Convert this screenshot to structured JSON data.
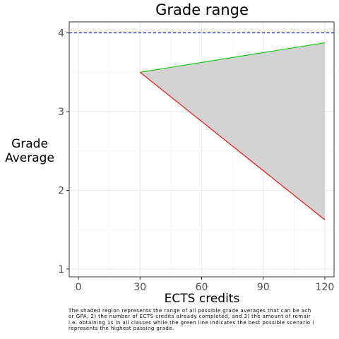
{
  "chart_data": {
    "type": "area",
    "title": "Grade range",
    "xlabel": "ECTS credits",
    "ylabel": [
      "Grade",
      "Average"
    ],
    "xlim": [
      -4.5,
      124.5
    ],
    "ylim": [
      0.9,
      4.14
    ],
    "x_ticks": [
      0,
      30,
      60,
      90,
      120
    ],
    "y_ticks": [
      1,
      2,
      3,
      4
    ],
    "grid": true,
    "legend": "none",
    "reference_line": {
      "y": 4,
      "color": "#0000ff",
      "style": "dashed"
    },
    "region": {
      "x": [
        30,
        120
      ],
      "upper": [
        3.5,
        3.875
      ],
      "lower": [
        3.5,
        1.625
      ],
      "fill": "#d3d3d3"
    },
    "series": [
      {
        "x": [
          30,
          120
        ],
        "values": [
          3.5,
          3.875
        ],
        "color": "#00cd00"
      },
      {
        "x": [
          30,
          120
        ],
        "values": [
          3.5,
          1.625
        ],
        "color": "#ee0000"
      }
    ]
  },
  "caption": [
    "The shaded region represents the range of all possible grade averages that can be ach",
    "or GPA, 2) the number of ECTS credits already completed, and 3) the amount of remair",
    "i.e. obtaining 1s in all classes while the green line indicates the best possible scenario (",
    "represents the highest passing grade."
  ]
}
